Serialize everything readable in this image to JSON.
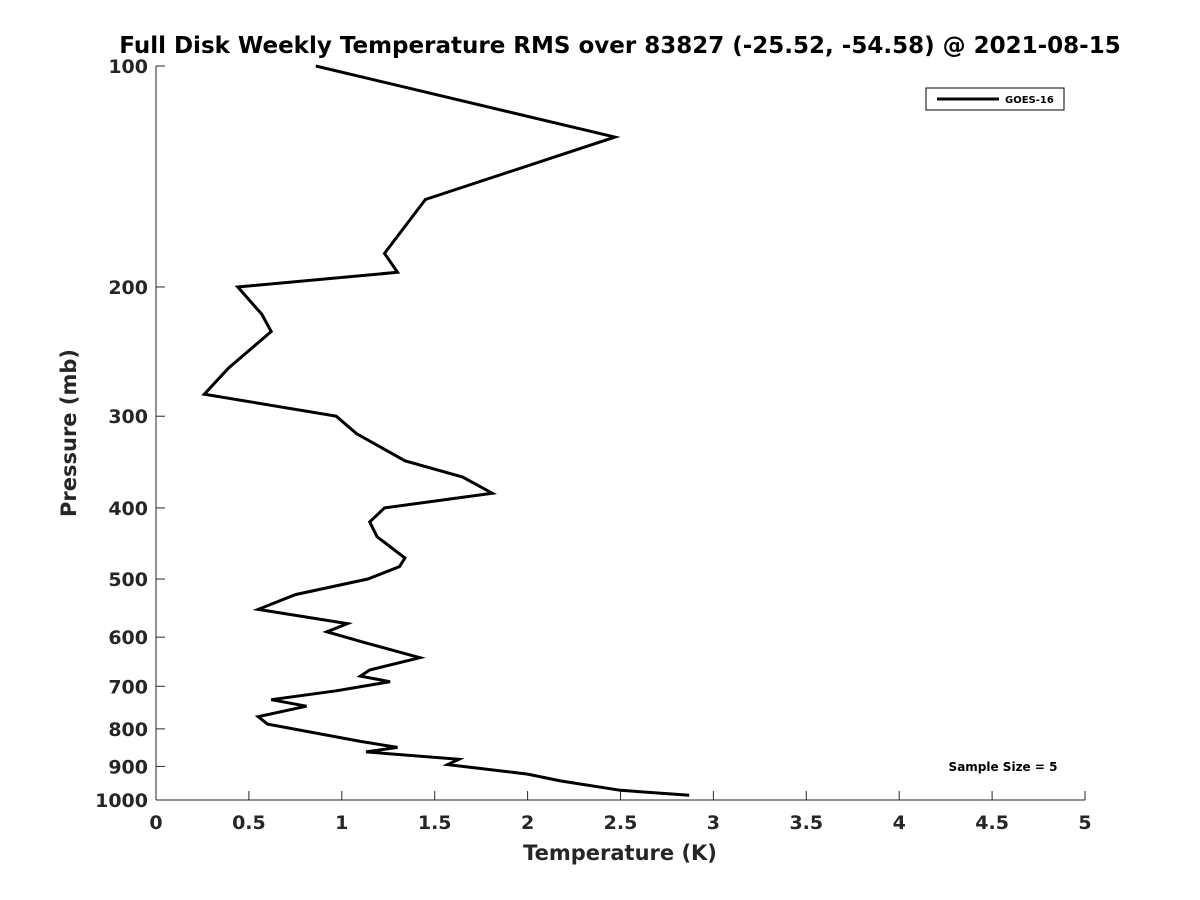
{
  "chart_data": {
    "type": "line",
    "title": "Full Disk Weekly Temperature RMS over 83827 (-25.52, -54.58) @ 2021-08-15",
    "xlabel": "Temperature (K)",
    "ylabel": "Pressure (mb)",
    "xlim": [
      0,
      5
    ],
    "ylim": [
      100,
      1000
    ],
    "y_scale": "log",
    "y_inverted": true,
    "grid": false,
    "legend_position": "top-right",
    "x_ticks": [
      "0",
      "0.5",
      "1",
      "1.5",
      "2",
      "2.5",
      "3",
      "3.5",
      "4",
      "4.5",
      "5"
    ],
    "y_ticks": [
      "100",
      "200",
      "300",
      "400",
      "500",
      "600",
      "700",
      "800",
      "900",
      "1000"
    ],
    "series": [
      {
        "name": "GOES-16",
        "color": "#000000",
        "points": [
          [
            0.86,
            100
          ],
          [
            2.47,
            125
          ],
          [
            1.45,
            152
          ],
          [
            1.23,
            180
          ],
          [
            1.3,
            191
          ],
          [
            0.44,
            200
          ],
          [
            0.57,
            218
          ],
          [
            0.62,
            230
          ],
          [
            0.39,
            258
          ],
          [
            0.26,
            280
          ],
          [
            0.97,
            300
          ],
          [
            1.08,
            317
          ],
          [
            1.34,
            345
          ],
          [
            1.65,
            363
          ],
          [
            1.81,
            382
          ],
          [
            1.23,
            400
          ],
          [
            1.15,
            418
          ],
          [
            1.19,
            438
          ],
          [
            1.34,
            468
          ],
          [
            1.31,
            481
          ],
          [
            1.14,
            500
          ],
          [
            0.75,
            525
          ],
          [
            0.55,
            550
          ],
          [
            1.03,
            575
          ],
          [
            0.92,
            590
          ],
          [
            1.12,
            610
          ],
          [
            1.42,
            640
          ],
          [
            1.15,
            665
          ],
          [
            1.1,
            678
          ],
          [
            1.26,
            690
          ],
          [
            0.97,
            710
          ],
          [
            0.62,
            730
          ],
          [
            0.81,
            745
          ],
          [
            0.55,
            770
          ],
          [
            0.6,
            788
          ],
          [
            1.1,
            832
          ],
          [
            1.3,
            848
          ],
          [
            1.13,
            860
          ],
          [
            1.63,
            880
          ],
          [
            1.57,
            895
          ],
          [
            2.0,
            922
          ],
          [
            2.18,
            942
          ],
          [
            2.5,
            970
          ],
          [
            2.87,
            985
          ]
        ]
      }
    ],
    "annotations": [
      "Sample Size = 5"
    ]
  }
}
